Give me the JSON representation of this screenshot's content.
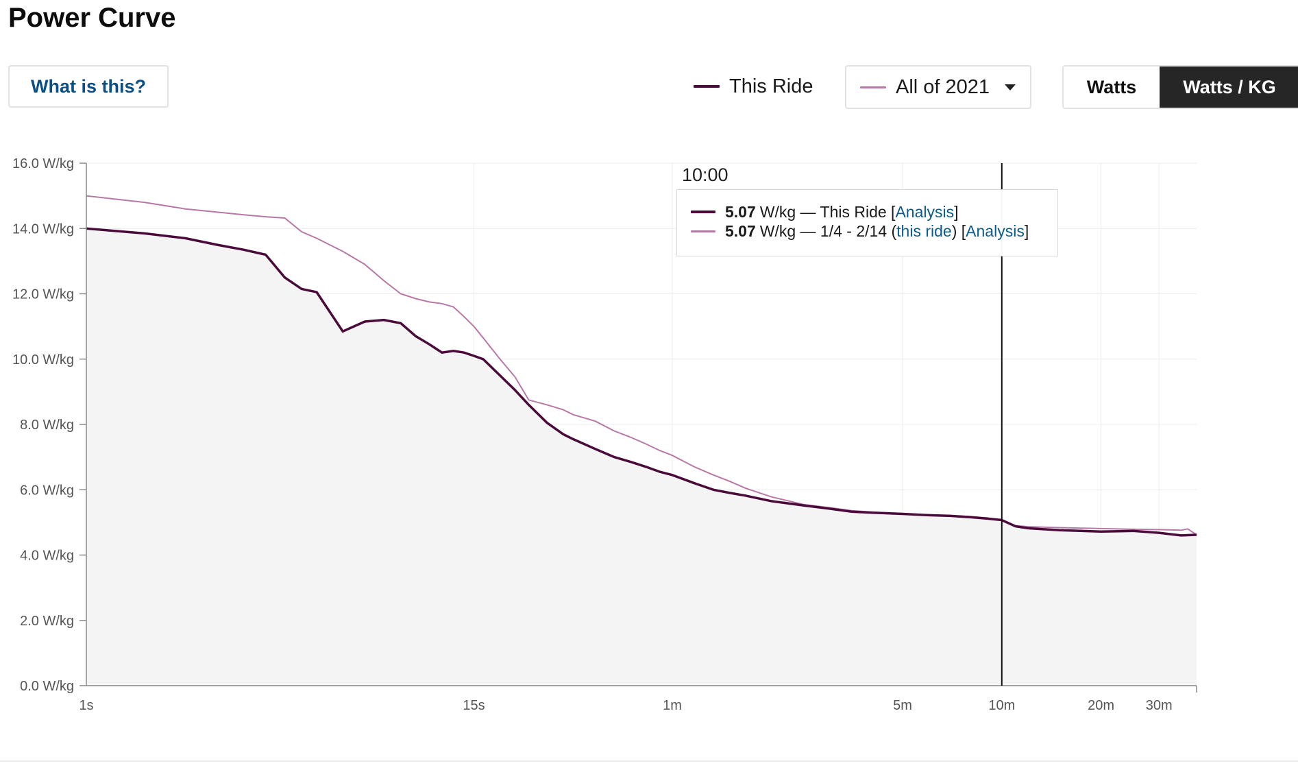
{
  "header": {
    "title": "Power Curve",
    "help_label": "What is this?"
  },
  "legend": {
    "this_ride_label": "This Ride",
    "range_label": "All of 2021"
  },
  "units_toggle": {
    "watts_label": "Watts",
    "wkg_label": "Watts / KG",
    "active": "Watts / KG"
  },
  "tooltip": {
    "time": "10:00",
    "row1": {
      "value": "5.07",
      "unit": " W/kg — This Ride [",
      "link": "Analysis",
      "close": "]"
    },
    "row2": {
      "value": "5.07",
      "unit": " W/kg — 1/4 - 2/14 (",
      "link1": "this ride",
      "mid": ") [",
      "link2": "Analysis",
      "close": "]"
    }
  },
  "colors": {
    "this_ride": "#4a0a3a",
    "all_2021": "#b878a6",
    "area_fill": "#f4f4f5",
    "link": "#0b5c8a"
  },
  "chart_data": {
    "type": "line",
    "title": "Power Curve",
    "x_scale": "log",
    "x_unit": "seconds",
    "xlim": [
      1,
      2340
    ],
    "ylim": [
      0,
      16
    ],
    "ylabel_unit": "W/kg",
    "y_ticks": [
      0,
      2,
      4,
      6,
      8,
      10,
      12,
      14,
      16
    ],
    "y_tick_labels": [
      "0.0 W/kg",
      "2.0 W/kg",
      "4.0 W/kg",
      "6.0 W/kg",
      "8.0 W/kg",
      "10.0 W/kg",
      "12.0 W/kg",
      "14.0 W/kg",
      "16.0 W/kg"
    ],
    "x_ticks": [
      1,
      15,
      60,
      300,
      600,
      1200,
      1800
    ],
    "x_tick_labels": [
      "1s",
      "15s",
      "1m",
      "5m",
      "10m",
      "20m",
      "30m"
    ],
    "hover_x": 600,
    "series": [
      {
        "name": "This Ride",
        "color": "#4a0a3a",
        "x": [
          1,
          1.5,
          2,
          2.5,
          3,
          3.5,
          4,
          4.5,
          5,
          6,
          7,
          8,
          9,
          10,
          11,
          12,
          13,
          14,
          15,
          16,
          18,
          20,
          22,
          25,
          28,
          30,
          35,
          40,
          45,
          50,
          55,
          60,
          70,
          80,
          90,
          100,
          120,
          150,
          180,
          210,
          240,
          300,
          360,
          420,
          480,
          540,
          600,
          660,
          720,
          900,
          1200,
          1500,
          1800,
          2100,
          2340
        ],
        "y": [
          14.0,
          13.85,
          13.7,
          13.5,
          13.35,
          13.2,
          12.5,
          12.15,
          12.05,
          10.85,
          11.15,
          11.2,
          11.1,
          10.7,
          10.45,
          10.2,
          10.25,
          10.2,
          10.1,
          10.0,
          9.5,
          9.05,
          8.6,
          8.05,
          7.7,
          7.55,
          7.25,
          7.0,
          6.85,
          6.7,
          6.55,
          6.45,
          6.2,
          6.0,
          5.9,
          5.82,
          5.65,
          5.52,
          5.42,
          5.33,
          5.3,
          5.26,
          5.22,
          5.2,
          5.16,
          5.12,
          5.07,
          4.88,
          4.82,
          4.76,
          4.72,
          4.74,
          4.68,
          4.6,
          4.62
        ]
      },
      {
        "name": "All of 2021 (1/4 - 2/14)",
        "color": "#b878a6",
        "x": [
          1,
          1.5,
          2,
          2.5,
          3,
          3.5,
          4,
          4.5,
          5,
          6,
          7,
          8,
          9,
          10,
          11,
          12,
          13,
          14,
          15,
          16,
          18,
          20,
          22,
          25,
          28,
          30,
          35,
          40,
          45,
          50,
          55,
          60,
          70,
          80,
          90,
          100,
          120,
          150,
          180,
          210,
          240,
          300,
          360,
          420,
          480,
          540,
          600,
          660,
          720,
          900,
          1200,
          1500,
          1800,
          2100,
          2200,
          2340
        ],
        "y": [
          15.0,
          14.8,
          14.6,
          14.5,
          14.42,
          14.36,
          14.32,
          13.9,
          13.7,
          13.3,
          12.9,
          12.4,
          12.0,
          11.85,
          11.75,
          11.7,
          11.6,
          11.3,
          11.0,
          10.65,
          10.0,
          9.45,
          8.75,
          8.6,
          8.45,
          8.3,
          8.1,
          7.8,
          7.6,
          7.4,
          7.2,
          7.05,
          6.7,
          6.45,
          6.25,
          6.05,
          5.78,
          5.55,
          5.45,
          5.36,
          5.32,
          5.27,
          5.23,
          5.21,
          5.18,
          5.14,
          5.07,
          4.9,
          4.87,
          4.84,
          4.81,
          4.79,
          4.78,
          4.76,
          4.8,
          4.62
        ]
      }
    ]
  }
}
